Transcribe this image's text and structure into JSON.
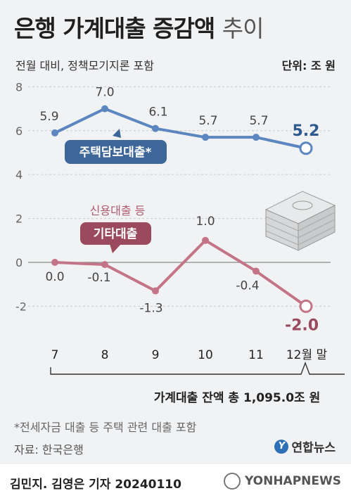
{
  "header": {
    "title_main": "은행 가계대출 증감액",
    "title_suffix": "추이",
    "subtitle": "전월 대비, 정책모기지론 포함",
    "unit": "단위: 조 원"
  },
  "chart_data": {
    "type": "line",
    "categories": [
      "7",
      "8",
      "9",
      "10",
      "11",
      "12월 말"
    ],
    "ylim": [
      -2.5,
      8
    ],
    "yticks": [
      8,
      6,
      4,
      2,
      0,
      -2
    ],
    "grid": true,
    "series": [
      {
        "name": "주택담보대출*",
        "values": [
          5.9,
          7.0,
          6.1,
          5.7,
          5.7,
          5.2
        ],
        "labels": [
          "5.9",
          "7.0",
          "6.1",
          "5.7",
          "5.7",
          "5.2"
        ],
        "color": "#5b86c0",
        "label_color": "#2e5a8f"
      },
      {
        "name": "기타대출",
        "caption": "신용대출 등",
        "values": [
          0.0,
          -0.1,
          -1.3,
          1.0,
          -0.4,
          -2.0
        ],
        "labels": [
          "0.0",
          "-0.1",
          "-1.3",
          "1.0",
          "-0.4",
          "-2.0"
        ],
        "color": "#c47487",
        "label_color": "#9a4a5e"
      }
    ],
    "annotation": "가계대출 잔액 총 1,095.0조 원"
  },
  "footer": {
    "note": "*전세자금 대출 등 주택 관련 대출 포함",
    "source": "자료: 한국은행",
    "brand": "연합뉴스",
    "reporter": "김민지. 김영은 기자  20240110",
    "watermark": "YONHAPNEWS"
  }
}
